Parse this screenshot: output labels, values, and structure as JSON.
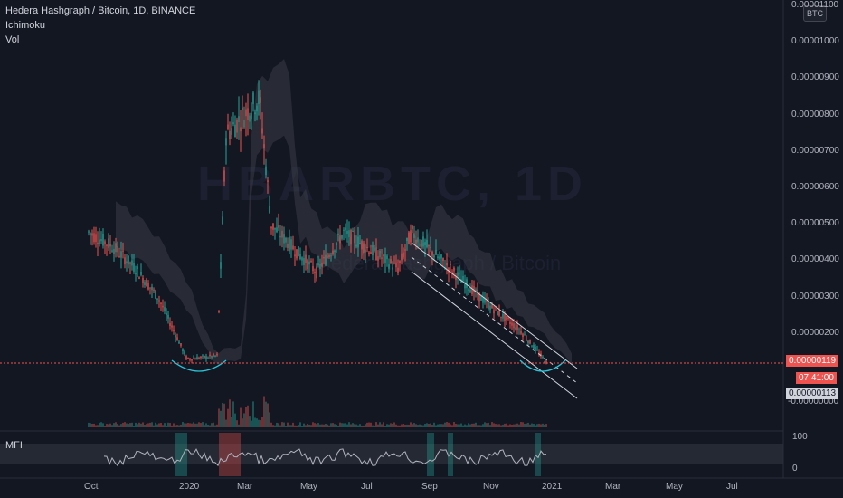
{
  "legend": {
    "title": "Hedera Hashgraph / Bitcoin, 1D, BINANCE",
    "indicators": [
      "Ichimoku",
      "Vol"
    ],
    "mfi_label": "MFI"
  },
  "watermark": {
    "symbol": "HBARBTC, 1D",
    "subtitle": "Hedera Hashgraph / Bitcoin"
  },
  "currency_button": "BTC",
  "price_axis": {
    "labels": [
      "0.00001100",
      "0.00001000",
      "0.00000900",
      "0.00000800",
      "0.00000700",
      "0.00000600",
      "0.00000500",
      "0.00000400",
      "0.00000300",
      "0.00000200",
      "-0.00000000"
    ],
    "current_price": "0.00000119",
    "countdown": "07:41:00",
    "crosshair_price": "0.00000113"
  },
  "mfi_axis": {
    "labels": [
      "100",
      "0"
    ]
  },
  "time_axis": {
    "labels": [
      "Oct",
      "2020",
      "Mar",
      "May",
      "Jul",
      "Sep",
      "Nov",
      "2021",
      "Mar",
      "May",
      "Jul"
    ]
  },
  "colors": {
    "background": "#131722",
    "up": "#26a69a",
    "down": "#ef5350",
    "cloud": "#3a3d47",
    "mfi_line": "#b2b5be",
    "mfi_band": "#2a2e39",
    "price_badge": "#ef5350",
    "crosshair_badge": "#d1d4dc"
  },
  "chart_data": {
    "type": "candlestick",
    "symbol": "HBARBTC",
    "interval": "1D",
    "exchange": "BINANCE",
    "ylim": [
      0,
      1.1e-05
    ],
    "price_path": [
      {
        "x": "Sep 2019",
        "y": 4.8e-06
      },
      {
        "x": "Oct 2019",
        "y": 4.4e-06
      },
      {
        "x": "Nov 2019",
        "y": 3.8e-06
      },
      {
        "x": "Dec 2019",
        "y": 3e-06
      },
      {
        "x": "Jan 2020",
        "y": 1.3e-06
      },
      {
        "x": "Feb 2020",
        "y": 1.4e-06
      },
      {
        "x": "Feb 2020",
        "y": 7.5e-06
      },
      {
        "x": "Mar 2020",
        "y": 8.5e-06
      },
      {
        "x": "Mar 2020",
        "y": 5e-06
      },
      {
        "x": "May 2020",
        "y": 3.7e-06
      },
      {
        "x": "Jun 2020",
        "y": 4.8e-06
      },
      {
        "x": "Aug 2020",
        "y": 3.8e-06
      },
      {
        "x": "Aug 2020",
        "y": 4.8e-06
      },
      {
        "x": "Oct 2020",
        "y": 2.8e-06
      },
      {
        "x": "Nov 2020",
        "y": 2.1e-06
      },
      {
        "x": "Dec 2020",
        "y": 1.19e-06
      }
    ]
  }
}
